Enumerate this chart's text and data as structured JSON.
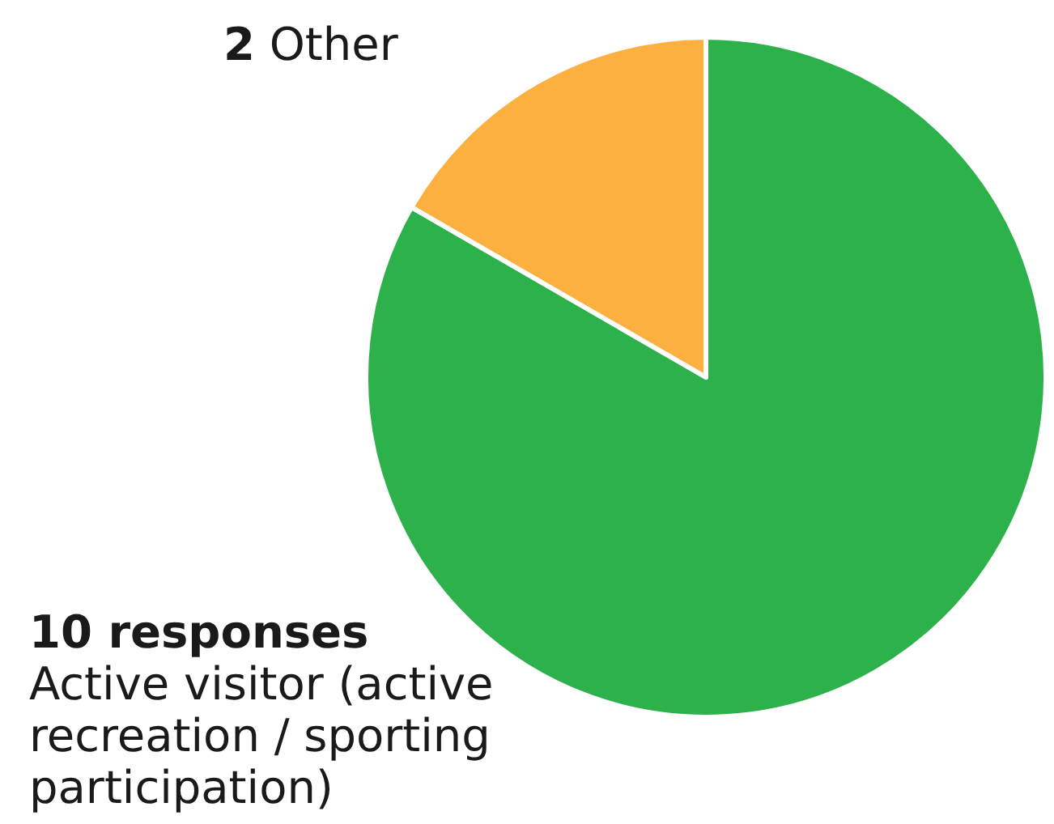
{
  "chart_data": {
    "type": "pie",
    "categories": [
      "Active visitor (active recreation / sporting participation)",
      "Other"
    ],
    "values": [
      10,
      2
    ],
    "colors": [
      "#2db14b",
      "#fbb040"
    ],
    "value_labels": [
      "10 responses",
      "2"
    ]
  }
}
